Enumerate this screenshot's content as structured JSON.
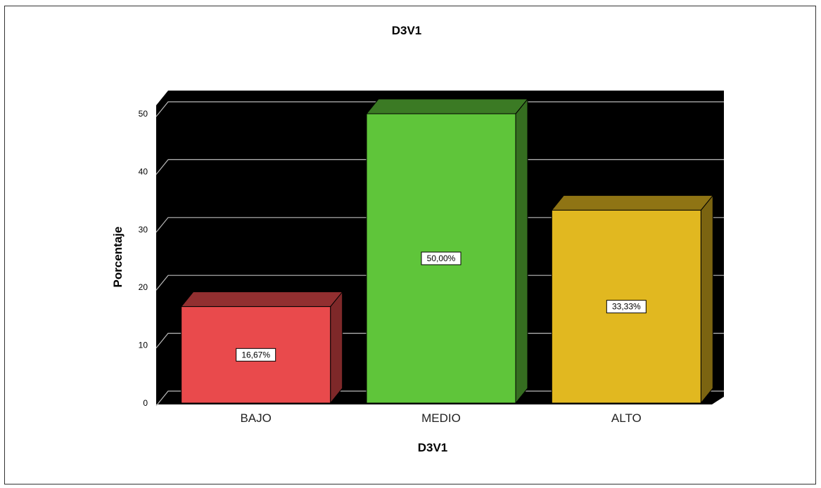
{
  "chart_data": {
    "type": "bar",
    "title": "D3V1",
    "xlabel": "D3V1",
    "ylabel": "Porcentaje",
    "categories": [
      "BAJO",
      "MEDIO",
      "ALTO"
    ],
    "values": [
      16.67,
      50.0,
      33.33
    ],
    "data_labels": [
      "16,67%",
      "50,00%",
      "33,33%"
    ],
    "yticks": [
      "0",
      "10",
      "20",
      "30",
      "40",
      "50"
    ],
    "ylim": [
      0,
      50
    ],
    "grid": true,
    "style": "3d",
    "colors": {
      "background": "#000000",
      "grid": "#bbbbbb",
      "bars": [
        "#e94a4c",
        "#5fc53a",
        "#e1b820"
      ],
      "bar_tops": [
        "#922f30",
        "#3b7a24",
        "#8f7414"
      ],
      "bar_sides": [
        "#7e2829",
        "#356d20",
        "#7b6411"
      ]
    }
  }
}
